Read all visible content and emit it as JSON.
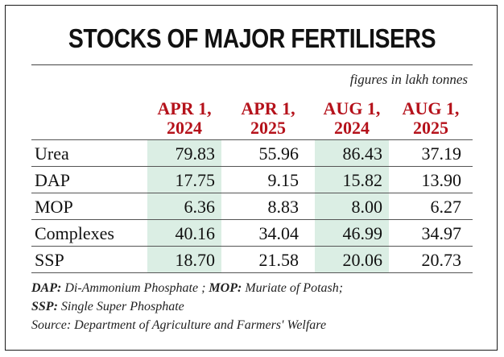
{
  "title": "STOCKS OF MAJOR FERTILISERS",
  "units": "figures in  lakh tonnes",
  "footnotes": {
    "dap_abbr": "DAP:",
    "dap_text": "Di-Ammonium Phosphate ;",
    "mop_abbr": "MOP:",
    "mop_text": "Muriate of Potash;",
    "ssp_abbr": "SSP:",
    "ssp_text": "Single Super Phosphate",
    "source": "Source: Department of Agriculture and Farmers' Welfare"
  },
  "colors": {
    "header_red": "#b5121b",
    "shade": "#dbeee4"
  },
  "chart_data": {
    "type": "table",
    "columns": [
      {
        "line1": "APR 1,",
        "line2": "2024",
        "shaded": true
      },
      {
        "line1": "APR 1,",
        "line2": "2025",
        "shaded": false
      },
      {
        "line1": "AUG 1,",
        "line2": "2024",
        "shaded": true
      },
      {
        "line1": "AUG 1,",
        "line2": "2025",
        "shaded": false
      }
    ],
    "rows": [
      {
        "label": "Urea",
        "values": [
          "79.83",
          "55.96",
          "86.43",
          "37.19"
        ]
      },
      {
        "label": "DAP",
        "values": [
          "17.75",
          "9.15",
          "15.82",
          "13.90"
        ]
      },
      {
        "label": "MOP",
        "values": [
          "6.36",
          "8.83",
          "8.00",
          "6.27"
        ]
      },
      {
        "label": "Complexes",
        "values": [
          "40.16",
          "34.04",
          "46.99",
          "34.97"
        ]
      },
      {
        "label": "SSP",
        "values": [
          "18.70",
          "21.58",
          "20.06",
          "20.73"
        ]
      }
    ]
  }
}
